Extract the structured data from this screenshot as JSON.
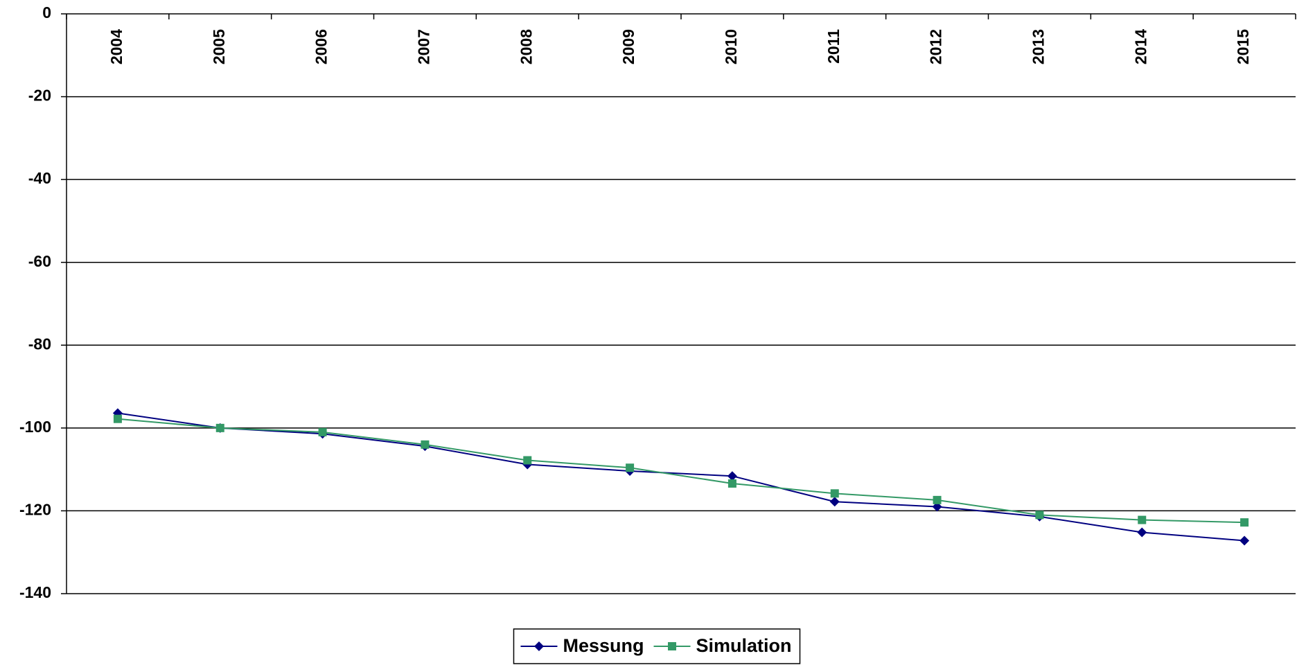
{
  "chart_data": {
    "type": "line",
    "categories": [
      "2004",
      "2005",
      "2006",
      "2007",
      "2008",
      "2009",
      "2010",
      "2011",
      "2012",
      "2013",
      "2014",
      "2015"
    ],
    "series": [
      {
        "name": "Messung",
        "color": "#000080",
        "marker": "diamond",
        "values": [
          -96.4,
          -100,
          -101.4,
          -104.4,
          -108.8,
          -110.4,
          -111.6,
          -117.8,
          -119,
          -121.4,
          -125.2,
          -127.2
        ]
      },
      {
        "name": "Simulation",
        "color": "#339966",
        "marker": "square",
        "values": [
          -97.8,
          -100,
          -101,
          -104,
          -107.8,
          -109.6,
          -113.4,
          -115.8,
          -117.4,
          -121,
          -122.2,
          -122.8
        ]
      }
    ],
    "ylim": [
      -140,
      0
    ],
    "yticks": [
      0,
      -20,
      -40,
      -60,
      -80,
      -100,
      -120,
      -140
    ],
    "grid": true,
    "legend": "bottom"
  }
}
